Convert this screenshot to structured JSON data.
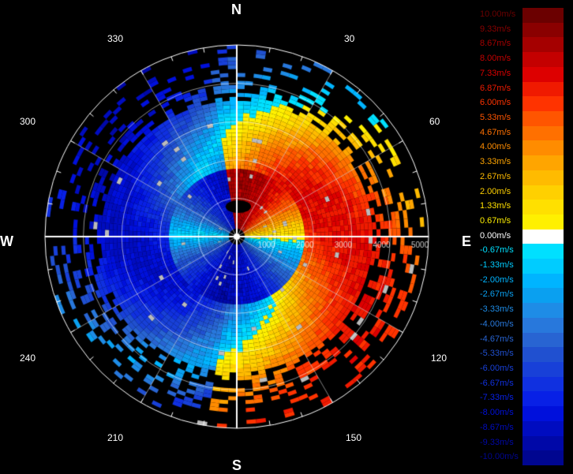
{
  "compass": {
    "north": "N",
    "south": "S",
    "east": "E",
    "west": "W"
  },
  "azimuth_labels": [
    "30",
    "60",
    "120",
    "150",
    "210",
    "240",
    "300",
    "330"
  ],
  "range_labels": [
    "1000",
    "2000",
    "3000",
    "4000",
    "5000"
  ],
  "legend": [
    {
      "label": "10.00m/s",
      "color": "#6b0000"
    },
    {
      "label": "9.33m/s",
      "color": "#8a0000"
    },
    {
      "label": "8.67m/s",
      "color": "#a50000"
    },
    {
      "label": "8.00m/s",
      "color": "#c40000"
    },
    {
      "label": "7.33m/s",
      "color": "#dd0000"
    },
    {
      "label": "6.87m/s",
      "color": "#f01a00"
    },
    {
      "label": "6.00m/s",
      "color": "#ff3300"
    },
    {
      "label": "5.33m/s",
      "color": "#ff5500"
    },
    {
      "label": "4.67m/s",
      "color": "#ff7000"
    },
    {
      "label": "4.00m/s",
      "color": "#ff8c00"
    },
    {
      "label": "3.33m/s",
      "color": "#ffa500"
    },
    {
      "label": "2.67m/s",
      "color": "#ffbb00"
    },
    {
      "label": "2.00m/s",
      "color": "#ffd000"
    },
    {
      "label": "1.33m/s",
      "color": "#ffe000"
    },
    {
      "label": "0.67m/s",
      "color": "#fff000"
    },
    {
      "label": "0.00m/s",
      "color": "#ffffff"
    },
    {
      "label": "-0.67m/s",
      "color": "#00e0ff"
    },
    {
      "label": "-1.33m/s",
      "color": "#00ccff"
    },
    {
      "label": "-2.00m/s",
      "color": "#00b4ff"
    },
    {
      "label": "-2.67m/s",
      "color": "#0aa0f0"
    },
    {
      "label": "-3.33m/s",
      "color": "#1e8ce6"
    },
    {
      "label": "-4.00m/s",
      "color": "#2878dc"
    },
    {
      "label": "-4.67m/s",
      "color": "#2864d2"
    },
    {
      "label": "-5.33m/s",
      "color": "#2050d0"
    },
    {
      "label": "-6.00m/s",
      "color": "#1840d8"
    },
    {
      "label": "-6.67m/s",
      "color": "#1030e0"
    },
    {
      "label": "-7.33m/s",
      "color": "#0820e6"
    },
    {
      "label": "-8.00m/s",
      "color": "#0010dc"
    },
    {
      "label": "-8.67m/s",
      "color": "#000cc0"
    },
    {
      "label": "-9.33m/s",
      "color": "#0008a8"
    },
    {
      "label": "-10.00m/s",
      "color": "#000690"
    }
  ],
  "colors": {
    "background": "#000000",
    "grid": "#ffffff",
    "missing": "#bbbbbb"
  }
}
